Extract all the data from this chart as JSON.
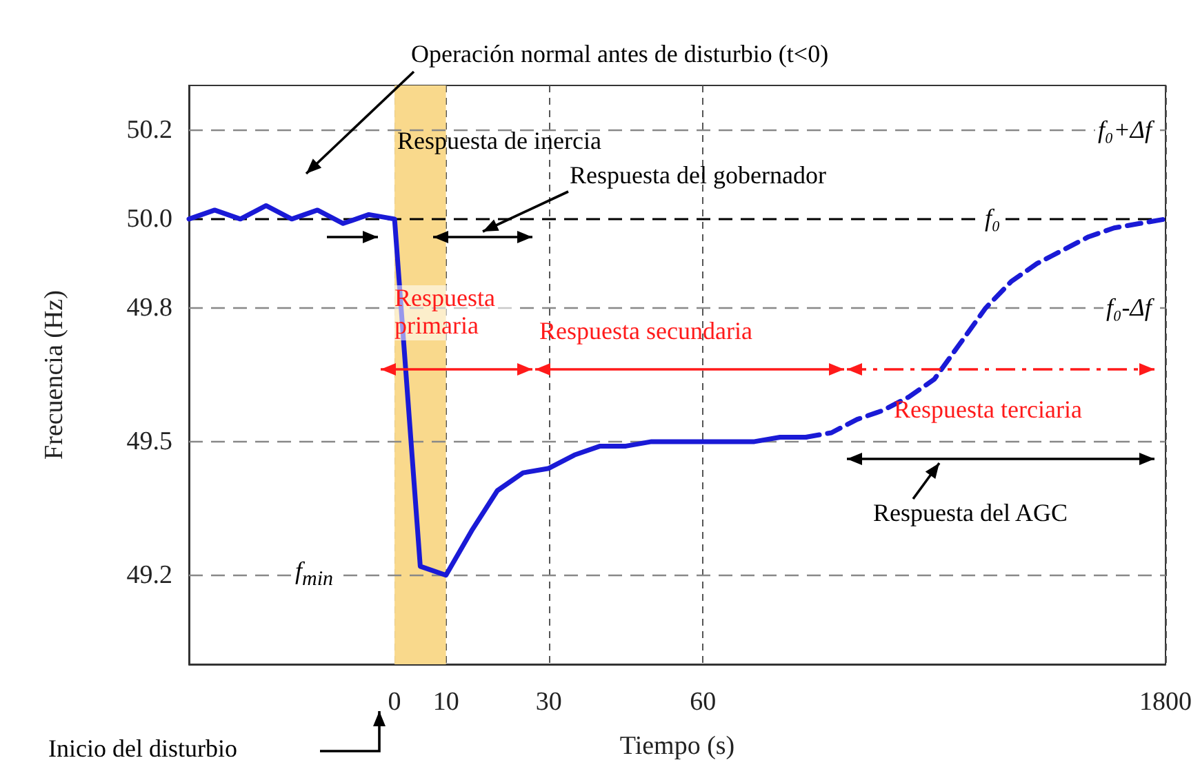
{
  "chart_data": {
    "type": "line",
    "xlabel": "Tiempo (s)",
    "ylabel": "Frecuencia (Hz)",
    "categories": [
      null,
      null,
      null,
      null,
      null,
      null,
      null,
      null,
      "0",
      null,
      "10",
      null,
      null,
      null,
      "30",
      null,
      null,
      null,
      null,
      null,
      "60",
      null,
      null,
      null,
      null,
      null,
      null,
      null,
      null,
      null,
      null,
      null,
      null,
      null,
      null,
      null,
      null,
      null,
      "1800"
    ],
    "series": [
      {
        "color": "#1a1ad6",
        "line_style": "solid",
        "values": [
          50.0,
          50.02,
          50.0,
          50.03,
          50.0,
          50.02,
          49.99,
          50.01,
          50.0,
          49.22,
          49.2,
          49.3,
          49.39,
          49.43,
          49.44,
          49.47,
          49.49,
          49.49,
          49.5,
          49.5,
          49.5,
          49.5,
          49.5,
          49.51,
          49.51,
          null,
          null,
          null,
          null,
          null,
          null,
          null,
          null,
          null,
          null,
          null,
          null,
          null,
          null
        ]
      },
      {
        "color": "#1a1ad6",
        "line_style": "dashed",
        "values": [
          null,
          null,
          null,
          null,
          null,
          null,
          null,
          null,
          null,
          null,
          null,
          null,
          null,
          null,
          null,
          null,
          null,
          null,
          null,
          null,
          null,
          null,
          null,
          null,
          49.51,
          49.52,
          49.55,
          49.57,
          49.6,
          49.64,
          49.72,
          49.8,
          49.86,
          49.9,
          49.93,
          49.96,
          49.98,
          49.99,
          50.0
        ]
      }
    ],
    "ylim": [
      49.0,
      50.3
    ],
    "yticks": [
      {
        "value": 49.2,
        "label": "49.2"
      },
      {
        "value": 49.5,
        "label": "49.5"
      },
      {
        "value": 49.8,
        "label": "49.8"
      },
      {
        "value": 50.0,
        "label": "50.0"
      },
      {
        "value": 50.2,
        "label": "50.2"
      }
    ],
    "grid": "x",
    "marker": "none",
    "ref_lines": [
      {
        "axis": "y",
        "value": 50.2,
        "label": "f₀+Δf",
        "color": "#888888",
        "line_style": "dashed"
      },
      {
        "axis": "y",
        "value": 50.0,
        "label": "f₀",
        "color": "#000000",
        "line_style": "dashed"
      },
      {
        "axis": "y",
        "value": 49.8,
        "label": "f₀-Δf",
        "color": "#888888",
        "line_style": "dashed"
      },
      {
        "axis": "y",
        "value": 49.2,
        "label": "f$_{min}$",
        "color": "#888888",
        "line_style": "dashed"
      },
      {
        "axis": "y",
        "value": 49.5,
        "color": "#888888",
        "line_style": "dashed"
      }
    ],
    "bands": [
      {
        "axis": "x",
        "from": "0",
        "to": "10",
        "color": "#f9d98c"
      }
    ],
    "annotations": [
      "Operación normal antes de disturbio (t<0)",
      "Respuesta de inercia",
      "Respuesta del gobernador",
      "Respuesta primaria",
      "Respuesta secundaria",
      "Respuesta terciaria",
      "Respuesta del AGC",
      "Inicio del disturbio"
    ]
  }
}
